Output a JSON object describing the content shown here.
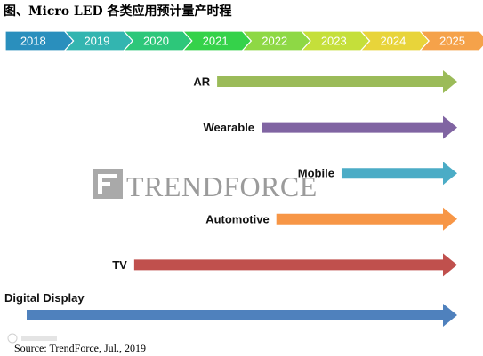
{
  "chart_data": {
    "type": "timeline",
    "title": "图、Micro LED 各类应用预计量产时程",
    "years": [
      {
        "label": "2018",
        "color": "#2a8fbd"
      },
      {
        "label": "2019",
        "color": "#33b5b0"
      },
      {
        "label": "2020",
        "color": "#2dc77a"
      },
      {
        "label": "2021",
        "color": "#35d24a"
      },
      {
        "label": "2022",
        "color": "#8ed845"
      },
      {
        "label": "2023",
        "color": "#c5df3a"
      },
      {
        "label": "2024",
        "color": "#e8d43a"
      },
      {
        "label": "2025",
        "color": "#f5a24a"
      }
    ],
    "applications": [
      {
        "name": "AR",
        "start": 2021.5,
        "end": 2025.5,
        "color": "#9bbb59",
        "label_position": "left"
      },
      {
        "name": "Wearable",
        "start": 2022.25,
        "end": 2025.5,
        "color": "#8064a2",
        "label_position": "left"
      },
      {
        "name": "Mobile",
        "start": 2023.6,
        "end": 2025.5,
        "color": "#4bacc6",
        "label_position": "left"
      },
      {
        "name": "Automotive",
        "start": 2022.5,
        "end": 2025.5,
        "color": "#f79646",
        "label_position": "left"
      },
      {
        "name": "TV",
        "start": 2020.1,
        "end": 2025.5,
        "color": "#c0504d",
        "label_position": "left"
      },
      {
        "name": "Digital Display",
        "start": 2018.0,
        "end": 2025.5,
        "color": "#4f81bd",
        "label_position": "above"
      }
    ],
    "source": "Source: TrendForce, Jul., 2019"
  },
  "watermark": {
    "text": "TRENDFORCE"
  }
}
